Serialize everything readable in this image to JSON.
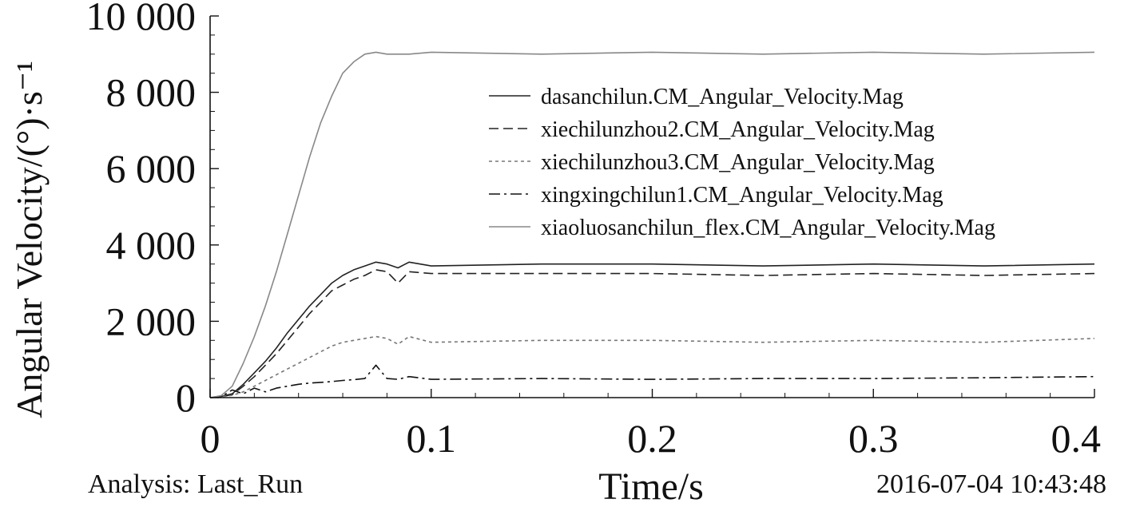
{
  "chart_data": {
    "type": "line",
    "title": "",
    "xlabel": "Time/s",
    "ylabel": "Angular Velocity/(°)·s⁻¹",
    "xlim": [
      0,
      0.4
    ],
    "ylim": [
      0,
      10000
    ],
    "x_ticks": [
      0,
      0.1,
      0.2,
      0.3,
      0.4
    ],
    "x_tick_labels": [
      "0",
      "0.1",
      "0.2",
      "0.3",
      "0.4"
    ],
    "y_ticks": [
      0,
      2000,
      4000,
      6000,
      8000,
      10000
    ],
    "y_tick_labels": [
      "0",
      "2 000",
      "4 000",
      "6 000",
      "8 000",
      "10 000"
    ],
    "grid": false,
    "legend_position": "top-right",
    "series": [
      {
        "name": "dasanchilun.CM_Angular_Velocity.Mag",
        "style": "solid",
        "color": "#222222",
        "x": [
          0,
          0.005,
          0.01,
          0.015,
          0.02,
          0.025,
          0.03,
          0.035,
          0.04,
          0.045,
          0.05,
          0.055,
          0.06,
          0.065,
          0.07,
          0.075,
          0.08,
          0.085,
          0.09,
          0.1,
          0.15,
          0.2,
          0.25,
          0.3,
          0.35,
          0.4
        ],
        "y": [
          0,
          30,
          100,
          350,
          650,
          950,
          1300,
          1700,
          2050,
          2400,
          2700,
          3000,
          3200,
          3350,
          3450,
          3550,
          3500,
          3400,
          3550,
          3450,
          3500,
          3500,
          3450,
          3500,
          3450,
          3500
        ]
      },
      {
        "name": "xiechilunzhou2.CM_Angular_Velocity.Mag",
        "style": "dashed",
        "color": "#222222",
        "x": [
          0,
          0.005,
          0.01,
          0.015,
          0.02,
          0.025,
          0.03,
          0.035,
          0.04,
          0.045,
          0.05,
          0.055,
          0.06,
          0.065,
          0.07,
          0.075,
          0.08,
          0.085,
          0.09,
          0.1,
          0.15,
          0.2,
          0.25,
          0.3,
          0.35,
          0.4
        ],
        "y": [
          0,
          20,
          80,
          300,
          550,
          850,
          1150,
          1500,
          1850,
          2200,
          2500,
          2800,
          2950,
          3100,
          3200,
          3350,
          3300,
          3000,
          3300,
          3250,
          3250,
          3250,
          3200,
          3250,
          3200,
          3250
        ]
      },
      {
        "name": "xiechilunzhou3.CM_Angular_Velocity.Mag",
        "style": "dotted",
        "color": "#777777",
        "x": [
          0,
          0.005,
          0.01,
          0.015,
          0.02,
          0.025,
          0.03,
          0.035,
          0.04,
          0.045,
          0.05,
          0.055,
          0.06,
          0.065,
          0.07,
          0.075,
          0.08,
          0.085,
          0.09,
          0.1,
          0.15,
          0.2,
          0.25,
          0.3,
          0.35,
          0.4
        ],
        "y": [
          0,
          20,
          60,
          150,
          300,
          450,
          600,
          750,
          900,
          1050,
          1200,
          1350,
          1450,
          1500,
          1550,
          1600,
          1550,
          1400,
          1600,
          1450,
          1500,
          1500,
          1450,
          1500,
          1450,
          1550
        ]
      },
      {
        "name": "xingxingchilun1.CM_Angular_Velocity.Mag",
        "style": "dashdot",
        "color": "#111111",
        "x": [
          0,
          0.005,
          0.01,
          0.015,
          0.02,
          0.025,
          0.03,
          0.035,
          0.04,
          0.045,
          0.05,
          0.055,
          0.06,
          0.065,
          0.07,
          0.075,
          0.08,
          0.085,
          0.09,
          0.1,
          0.15,
          0.2,
          0.25,
          0.3,
          0.35,
          0.4
        ],
        "y": [
          0,
          20,
          200,
          100,
          250,
          150,
          250,
          300,
          350,
          380,
          400,
          420,
          450,
          470,
          500,
          850,
          500,
          480,
          550,
          480,
          500,
          480,
          500,
          500,
          520,
          550
        ]
      },
      {
        "name": "xiaoluosanchilun_flex.CM_Angular_Velocity.Mag",
        "style": "solid",
        "color": "#888888",
        "x": [
          0,
          0.005,
          0.01,
          0.015,
          0.02,
          0.025,
          0.03,
          0.035,
          0.04,
          0.045,
          0.05,
          0.055,
          0.06,
          0.065,
          0.07,
          0.075,
          0.08,
          0.09,
          0.1,
          0.15,
          0.2,
          0.25,
          0.3,
          0.35,
          0.4
        ],
        "y": [
          0,
          50,
          300,
          900,
          1600,
          2400,
          3300,
          4300,
          5300,
          6300,
          7200,
          7900,
          8500,
          8800,
          9000,
          9050,
          9000,
          9000,
          9050,
          9000,
          9050,
          9000,
          9050,
          9000,
          9050
        ]
      }
    ],
    "annotations": {
      "analysis": "Analysis: Last_Run",
      "timestamp": "2016-07-04 10:43:48"
    }
  }
}
